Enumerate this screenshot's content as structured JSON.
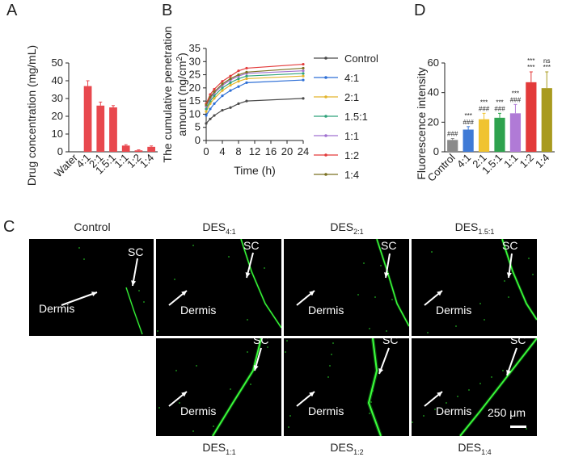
{
  "panels": {
    "a": "A",
    "b": "B",
    "c": "C",
    "d": "D"
  },
  "chart_data": [
    {
      "type": "bar",
      "id": "A",
      "categories": [
        "Water",
        "4:1",
        "2:1",
        "1.5:1",
        "1:1",
        "1:2",
        "1:4"
      ],
      "values": [
        0,
        37,
        26,
        25,
        3.5,
        0.8,
        2.8
      ],
      "errors": [
        0,
        3,
        2,
        1,
        0.5,
        0.3,
        0.5
      ],
      "ylabel": "Drug concentration (mg/mL)",
      "ylim": [
        0,
        50
      ],
      "yticks": [
        0,
        10,
        20,
        30,
        40,
        50
      ],
      "bar_color": "#e8484e"
    },
    {
      "type": "line",
      "id": "B",
      "x": [
        0,
        1,
        2,
        4,
        6,
        8,
        10,
        24
      ],
      "xticks": [
        0,
        4,
        8,
        12,
        16,
        20,
        24
      ],
      "xtick_labels": [
        "0",
        "4",
        "8",
        "12",
        "16",
        "20",
        "24"
      ],
      "xlabel": "Time (h)",
      "ylabel_main": "The cumulative penetration",
      "ylabel_sub": "amount (ng/cm",
      "ylabel_sup": "2",
      "ylabel_end": ")",
      "ylim": [
        0,
        35
      ],
      "yticks": [
        0,
        5,
        10,
        15,
        20,
        25,
        30,
        35
      ],
      "series": [
        {
          "name": "Control",
          "color": "#4a4a4a",
          "values": [
            6.5,
            8.2,
            9.5,
            11.5,
            12.5,
            14,
            15,
            16
          ]
        },
        {
          "name": "4:1",
          "color": "#2e6fd6",
          "values": [
            9.5,
            12,
            14,
            17,
            19,
            20.5,
            22,
            23
          ]
        },
        {
          "name": "2:1",
          "color": "#e3b52c",
          "values": [
            11,
            14,
            16,
            19,
            21,
            22.5,
            23.5,
            24.5
          ]
        },
        {
          "name": "1.5:1",
          "color": "#2ea27a",
          "values": [
            12,
            15,
            17,
            20,
            22,
            23.5,
            24.5,
            25.5
          ]
        },
        {
          "name": "1:1",
          "color": "#a070d0",
          "values": [
            13,
            16,
            18,
            21,
            23,
            24.5,
            25.5,
            26.5
          ]
        },
        {
          "name": "1:2",
          "color": "#e33a3a",
          "values": [
            14,
            17.5,
            19.5,
            22.5,
            24.5,
            26.5,
            27.5,
            29
          ]
        },
        {
          "name": "1:4",
          "color": "#7a7020",
          "values": [
            13.5,
            16.5,
            18.5,
            21.5,
            23.5,
            25,
            26,
            27.5
          ]
        }
      ]
    },
    {
      "type": "bar",
      "id": "D",
      "categories": [
        "Control",
        "4:1",
        "2:1",
        "1.5:1",
        "1:1",
        "1:2",
        "1:4"
      ],
      "values": [
        8,
        15,
        22,
        23,
        26,
        47,
        43
      ],
      "errors": [
        1,
        2,
        4,
        3,
        6,
        7,
        11
      ],
      "colors": [
        "#8a8a8a",
        "#3f7ad6",
        "#f0c330",
        "#2ea24e",
        "#b07ad6",
        "#e33a3a",
        "#a89a1e"
      ],
      "sig_top": [
        "",
        "***",
        "***",
        "***",
        "***",
        "***",
        "ns"
      ],
      "sig_bottom": [
        "###",
        "###",
        "###",
        "###",
        "###",
        "***",
        "***"
      ],
      "ylabel": "Fluorescence intensity",
      "ylim": [
        0,
        60
      ],
      "yticks": [
        0,
        20,
        40,
        60
      ]
    }
  ],
  "micrographs": {
    "top_titles": [
      {
        "main": "Control",
        "sub": ""
      },
      {
        "main": "DES",
        "sub": "4:1"
      },
      {
        "main": "DES",
        "sub": "2:1"
      },
      {
        "main": "DES",
        "sub": "1.5:1"
      }
    ],
    "bottom_titles": [
      {
        "main": "DES",
        "sub": "1:1"
      },
      {
        "main": "DES",
        "sub": "1:2"
      },
      {
        "main": "DES",
        "sub": "1:4"
      }
    ],
    "sc_label": "SC",
    "dermis_label": "Dermis",
    "scale_label": "250 μm"
  }
}
